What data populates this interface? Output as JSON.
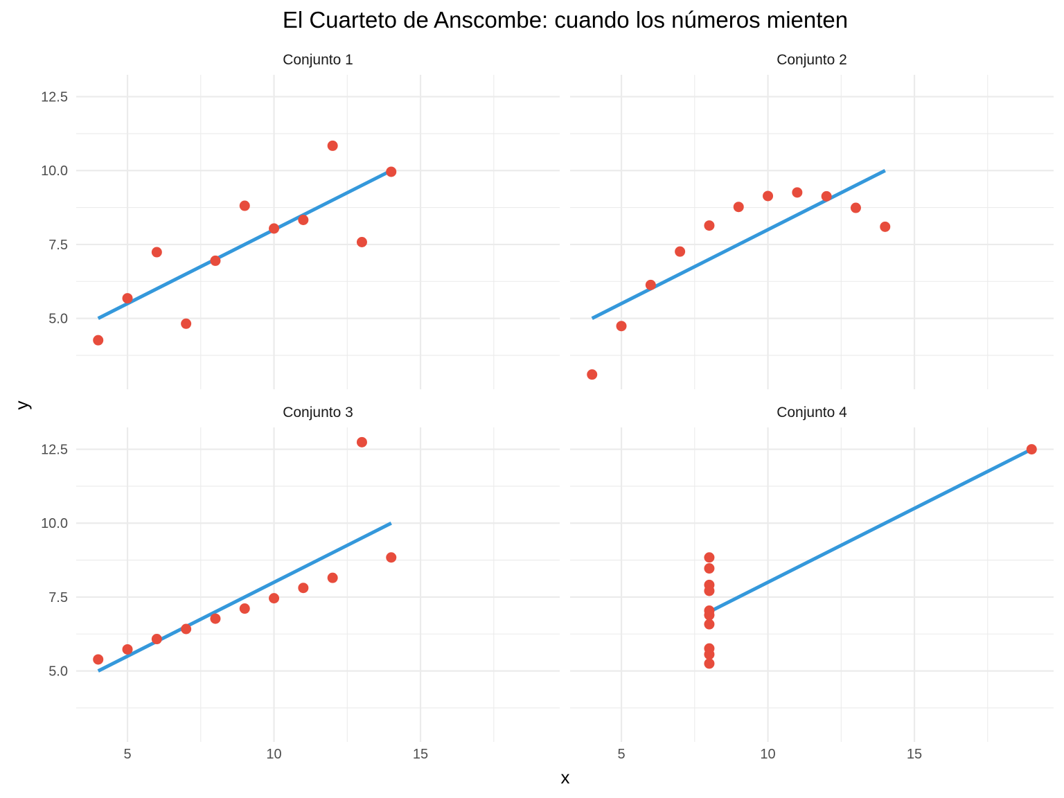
{
  "chart_data": {
    "type": "scatter",
    "title": "El Cuarteto de Anscombe: cuando los números mienten",
    "xlabel": "x",
    "ylabel": "y",
    "facets": [
      "Conjunto 1",
      "Conjunto 2",
      "Conjunto 3",
      "Conjunto 4"
    ],
    "xlim": [
      3.25,
      19.75
    ],
    "ylim": [
      2.6,
      13.24
    ],
    "x_ticks": [
      5,
      10,
      15
    ],
    "x_tick_labels": [
      "5",
      "10",
      "15"
    ],
    "y_ticks": [
      5.0,
      7.5,
      10.0,
      12.5
    ],
    "y_tick_labels": [
      "5.0",
      "7.5",
      "10.0",
      "12.5"
    ],
    "grid": true,
    "colors": {
      "points": "#e74c3c",
      "line": "#3498db"
    },
    "panels": [
      {
        "name": "Conjunto 1",
        "x": [
          10,
          8,
          13,
          9,
          11,
          14,
          6,
          4,
          12,
          7,
          5
        ],
        "y": [
          8.04,
          6.95,
          7.58,
          8.81,
          8.33,
          9.96,
          7.24,
          4.26,
          10.84,
          4.82,
          5.68
        ],
        "fit": {
          "x": [
            4,
            14
          ],
          "y": [
            5.0,
            10.0
          ]
        }
      },
      {
        "name": "Conjunto 2",
        "x": [
          10,
          8,
          13,
          9,
          11,
          14,
          6,
          4,
          12,
          7,
          5
        ],
        "y": [
          9.14,
          8.14,
          8.74,
          8.77,
          9.26,
          8.1,
          6.13,
          3.1,
          9.13,
          7.26,
          4.74
        ],
        "fit": {
          "x": [
            4,
            14
          ],
          "y": [
            5.0,
            10.0
          ]
        }
      },
      {
        "name": "Conjunto 3",
        "x": [
          10,
          8,
          13,
          9,
          11,
          14,
          6,
          4,
          12,
          7,
          5
        ],
        "y": [
          7.46,
          6.77,
          12.74,
          7.11,
          7.81,
          8.84,
          6.08,
          5.39,
          8.15,
          6.42,
          5.73
        ],
        "fit": {
          "x": [
            4,
            14
          ],
          "y": [
            5.0,
            10.0
          ]
        }
      },
      {
        "name": "Conjunto 4",
        "x": [
          8,
          8,
          8,
          8,
          8,
          8,
          8,
          19,
          8,
          8,
          8
        ],
        "y": [
          6.58,
          5.76,
          7.71,
          8.84,
          8.47,
          7.04,
          5.25,
          12.5,
          5.56,
          7.91,
          6.89
        ],
        "fit": {
          "x": [
            8,
            19
          ],
          "y": [
            7.0,
            12.5
          ]
        }
      }
    ]
  }
}
